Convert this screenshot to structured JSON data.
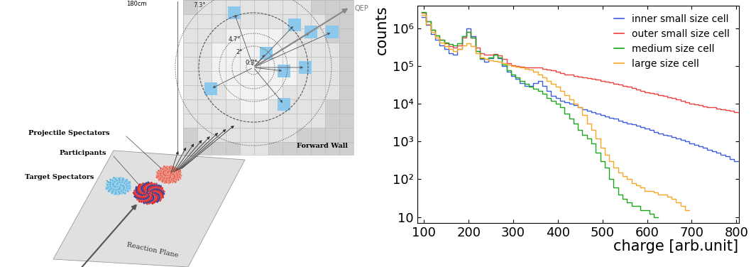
{
  "diagram": {
    "height_label": "180cm",
    "angles": [
      "7.3°",
      "4.7°",
      "2°",
      "0.3°"
    ],
    "event_plane_vector": "QEP",
    "forward_wall": "Forward Wall",
    "labels": {
      "projectile_spectators": "Projectile Spectators",
      "participants": "Participants",
      "target_spectators": "Target Spectators"
    },
    "reaction_plane": "Reaction Plane"
  },
  "chart_data": {
    "type": "histogram",
    "xlabel": "charge [arb.unit]",
    "ylabel": "counts",
    "log": "y",
    "grid": false,
    "legend": "upper right",
    "xlim": [
      85,
      805
    ],
    "ylim": [
      7,
      4000000
    ],
    "xticks": [
      100,
      200,
      300,
      400,
      500,
      600,
      700,
      800
    ],
    "yticks": [
      10,
      {
        "value": 100,
        "label": "10²"
      },
      {
        "value": 1000,
        "label": "10³"
      },
      {
        "value": 10000,
        "label": "10⁴"
      },
      {
        "value": 100000,
        "label": "10⁵"
      },
      {
        "value": 1000000,
        "label": "10⁶"
      }
    ],
    "bins": [
      95,
      105,
      115,
      125,
      135,
      145,
      155,
      165,
      175,
      185,
      195,
      205,
      215,
      225,
      235,
      245,
      255,
      265,
      275,
      285,
      295,
      305,
      315,
      325,
      335,
      345,
      355,
      365,
      375,
      385,
      395,
      405,
      415,
      425,
      435,
      445,
      455,
      465,
      475,
      485,
      495,
      505,
      515,
      525,
      535,
      545,
      555,
      565,
      575,
      585,
      595,
      605,
      615,
      625,
      635,
      645,
      655,
      665,
      675,
      685,
      695,
      705,
      715,
      725,
      735,
      745,
      755,
      765,
      775,
      785,
      795,
      805
    ],
    "series": [
      {
        "name": "inner small size cell",
        "color": "#3d5ce0",
        "values": [
          2000000,
          1200000,
          700000,
          500000,
          350000,
          280000,
          220000,
          200000,
          280000,
          600000,
          1000000,
          600000,
          250000,
          150000,
          130000,
          160000,
          200000,
          160000,
          100000,
          70000,
          55000,
          45000,
          35000,
          30000,
          30000,
          35000,
          40000,
          30000,
          22000,
          16000,
          14000,
          12000,
          11000,
          10000,
          9000,
          8000,
          7000,
          6500,
          6000,
          5500,
          5000,
          4500,
          4200,
          4000,
          3600,
          3300,
          3000,
          2800,
          2600,
          2400,
          2200,
          2000,
          1800,
          1600,
          1500,
          1400,
          1300,
          1200,
          1100,
          1000,
          900,
          800,
          750,
          700,
          600,
          550,
          500,
          450,
          400,
          350,
          300
        ]
      },
      {
        "name": "outer small size cell",
        "color": "#f04040",
        "values": [
          2500000,
          1500000,
          900000,
          650000,
          500000,
          400000,
          330000,
          300000,
          350000,
          550000,
          800000,
          550000,
          300000,
          220000,
          200000,
          200000,
          210000,
          190000,
          150000,
          120000,
          105000,
          100000,
          95000,
          90000,
          90000,
          90000,
          90000,
          85000,
          80000,
          75000,
          70000,
          65000,
          60000,
          58000,
          55000,
          52000,
          50000,
          48000,
          46000,
          43000,
          40000,
          38000,
          36000,
          34000,
          32000,
          30000,
          28000,
          26000,
          24000,
          22000,
          20000,
          19000,
          18000,
          17000,
          16000,
          15000,
          14000,
          13000,
          12000,
          11000,
          10000,
          9500,
          9000,
          8500,
          8200,
          8000,
          7500,
          7000,
          6800,
          6500,
          6000
        ]
      },
      {
        "name": "medium size cell",
        "color": "#1aa81a",
        "values": [
          2600000,
          1500000,
          900000,
          650000,
          500000,
          420000,
          380000,
          350000,
          400000,
          600000,
          800000,
          550000,
          250000,
          160000,
          150000,
          170000,
          200000,
          170000,
          110000,
          75000,
          60000,
          50000,
          40000,
          33000,
          28000,
          25000,
          22000,
          18000,
          14000,
          12000,
          10000,
          8000,
          5500,
          4000,
          3000,
          2000,
          1500,
          1200,
          900,
          500,
          300,
          200,
          100,
          60,
          40,
          30,
          25,
          20,
          20,
          15,
          15,
          12,
          10,
          null,
          null,
          null,
          null,
          null,
          null,
          null,
          null,
          null,
          null,
          null,
          null,
          null,
          null,
          null,
          null,
          null,
          null
        ]
      },
      {
        "name": "large size cell",
        "color": "#f5a623",
        "values": [
          2200000,
          1300000,
          800000,
          550000,
          420000,
          330000,
          280000,
          250000,
          280000,
          350000,
          400000,
          330000,
          220000,
          170000,
          150000,
          140000,
          135000,
          130000,
          120000,
          110000,
          100000,
          95000,
          90000,
          85000,
          80000,
          70000,
          60000,
          50000,
          40000,
          33000,
          28000,
          22000,
          17000,
          13000,
          10000,
          8000,
          5000,
          3000,
          2000,
          1200,
          700,
          450,
          300,
          200,
          150,
          120,
          100,
          80,
          70,
          60,
          50,
          50,
          45,
          40,
          40,
          35,
          30,
          25,
          20,
          15,
          null,
          null,
          null,
          null,
          null,
          null,
          null,
          null,
          null,
          null,
          null
        ]
      }
    ]
  }
}
